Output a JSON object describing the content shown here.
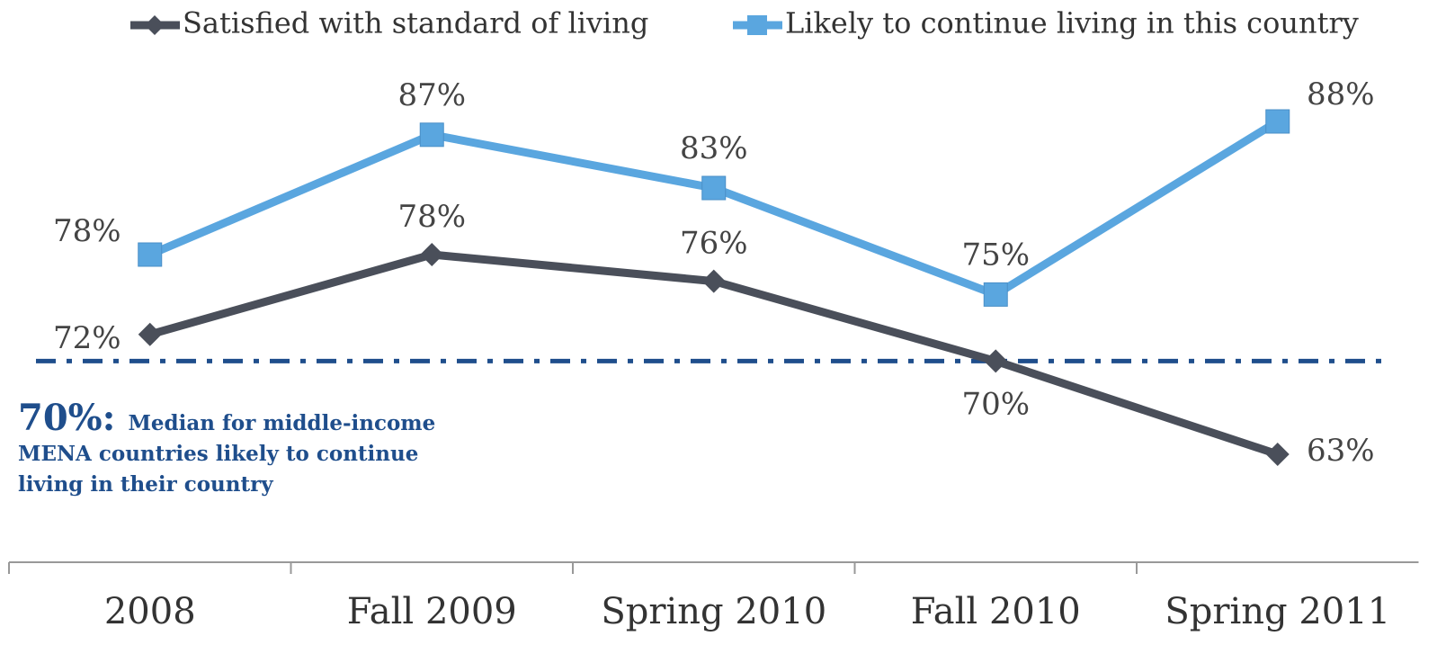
{
  "chart_data": {
    "type": "line",
    "categories": [
      "2008",
      "Fall 2009",
      "Spring 2010",
      "Fall 2010",
      "Spring 2011"
    ],
    "series": [
      {
        "name": "Satisfied with standard of living",
        "color": "#4a4f5a",
        "marker": "diamond",
        "values": [
          72,
          78,
          76,
          70,
          63
        ],
        "value_labels": [
          "72%",
          "78%",
          "76%",
          "70%",
          "63%"
        ]
      },
      {
        "name": "Likely to continue living in this country",
        "color": "#5aa6df",
        "marker": "square",
        "values": [
          78,
          87,
          83,
          75,
          88
        ],
        "value_labels": [
          "78%",
          "87%",
          "83%",
          "75%",
          "88%"
        ]
      }
    ],
    "reference_line": {
      "value": 70,
      "color": "#1f4e8c",
      "label": "70%:",
      "text": "Median for middle-income MENA countries likely to continue living in their country"
    },
    "legend": "top"
  }
}
